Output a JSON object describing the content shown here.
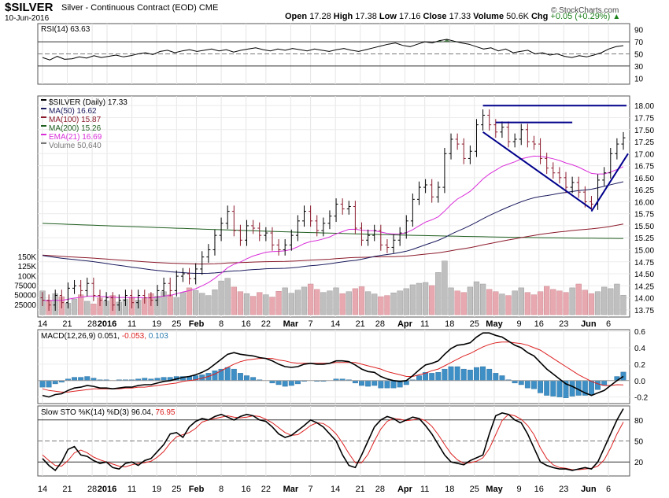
{
  "header": {
    "symbol": "$SILVER",
    "description": "Silver - Continuous Contract (EOD)",
    "exchange": "CME",
    "date": "10-Jun-2016",
    "open_label": "Open",
    "open": "17.28",
    "high_label": "High",
    "high": "17.38",
    "low_label": "Low",
    "low": "17.16",
    "close_label": "Close",
    "close": "17.33",
    "volume_label": "Volume",
    "volume": "50.6K",
    "chg_label": "Chg",
    "chg": "+0.05 (+0.29%)",
    "brand": "© StockCharts.com"
  },
  "chart_data": [
    {
      "type": "line",
      "panel": "rsi",
      "title": "RSI(14) 63.63",
      "y_ticks": [
        "90",
        "70",
        "50",
        "30",
        "10"
      ],
      "ylim": [
        0,
        100
      ],
      "reference_lines": [
        70,
        50,
        30
      ],
      "series": [
        {
          "name": "RSI(14)",
          "last": 63.63,
          "values": [
            44,
            40,
            46,
            41,
            42,
            45,
            43,
            47,
            44,
            46,
            48,
            45,
            47,
            50,
            52,
            49,
            54,
            56,
            52,
            55,
            57,
            54,
            56,
            58,
            55,
            57,
            53,
            56,
            58,
            60,
            57,
            55,
            58,
            56,
            59,
            57,
            55,
            58,
            56,
            54,
            57,
            59,
            56,
            54,
            57,
            60,
            63,
            66,
            68,
            64,
            62,
            66,
            70,
            68,
            72,
            74,
            71,
            68,
            66,
            62,
            58,
            60,
            55,
            58,
            52,
            54,
            56,
            50,
            52,
            48,
            50,
            46,
            44,
            47,
            45,
            48,
            52,
            58,
            62,
            63.63
          ]
        }
      ]
    },
    {
      "type": "candlestick",
      "panel": "price",
      "title": "$SILVER (Daily) 17.33",
      "y_ticks": [
        "18.00",
        "17.75",
        "17.50",
        "17.25",
        "17.00",
        "16.75",
        "16.50",
        "16.25",
        "16.00",
        "15.75",
        "15.50",
        "15.25",
        "15.00",
        "14.75",
        "14.50",
        "14.25",
        "14.00",
        "13.75"
      ],
      "volume_ticks": [
        "150K",
        "125K",
        "100K",
        "75000",
        "50000",
        "25000"
      ],
      "x_ticks": [
        "14",
        "21",
        "28",
        "2016",
        "11",
        "19",
        "25",
        "Feb",
        "8",
        "16",
        "22",
        "Mar",
        "7",
        "14",
        "21",
        "28",
        "Apr",
        "11",
        "18",
        "25",
        "May",
        "9",
        "16",
        "23",
        "Jun",
        "6"
      ],
      "legend": [
        {
          "label": "$SILVER (Daily) 17.33",
          "color": "#000000"
        },
        {
          "label": "MA(50) 16.62",
          "color": "#1a1a5e"
        },
        {
          "label": "MA(100) 15.87",
          "color": "#8b1a2b"
        },
        {
          "label": "MA(200) 15.26",
          "color": "#1f5e1f"
        },
        {
          "label": "EMA(21) 16.69",
          "color": "#d92fd9"
        },
        {
          "label": "Volume 50,640",
          "color": "#777777"
        }
      ],
      "ylim": [
        13.6,
        18.2
      ],
      "close": [
        13.95,
        13.85,
        14.05,
        13.9,
        14.2,
        14.25,
        14.15,
        14.3,
        14.05,
        13.95,
        14.0,
        13.85,
        13.95,
        14.05,
        13.9,
        14.05,
        14.0,
        13.95,
        14.15,
        14.3,
        14.15,
        14.45,
        14.5,
        14.4,
        14.6,
        14.85,
        15.0,
        15.3,
        15.55,
        15.8,
        15.4,
        15.2,
        15.5,
        15.45,
        15.3,
        15.35,
        15.1,
        15.0,
        15.1,
        15.3,
        15.6,
        15.8,
        15.6,
        15.4,
        15.55,
        15.7,
        15.95,
        15.85,
        15.9,
        15.45,
        15.2,
        15.3,
        15.4,
        15.1,
        15.05,
        15.2,
        15.35,
        15.6,
        16.05,
        16.3,
        16.35,
        16.1,
        16.3,
        17.0,
        17.3,
        17.2,
        16.9,
        17.05,
        17.6,
        17.8,
        17.6,
        17.45,
        17.55,
        17.25,
        17.3,
        17.5,
        17.25,
        17.2,
        16.9,
        16.7,
        16.6,
        16.5,
        16.3,
        16.4,
        16.2,
        16.0,
        15.95,
        16.45,
        16.6,
        17.0,
        17.2,
        17.33
      ],
      "volume": [
        62000,
        38000,
        55000,
        47000,
        30000,
        41000,
        52000,
        35000,
        28000,
        44000,
        36000,
        50000,
        33000,
        40000,
        46000,
        38000,
        42000,
        55000,
        48000,
        60000,
        52000,
        45000,
        58000,
        70000,
        63000,
        56000,
        50000,
        65000,
        88000,
        95000,
        72000,
        60000,
        55000,
        48000,
        58000,
        52000,
        46000,
        61000,
        70000,
        56000,
        64000,
        72000,
        80000,
        66000,
        58000,
        62000,
        70000,
        55000,
        60000,
        68000,
        73000,
        60000,
        54000,
        47000,
        50000,
        57000,
        62000,
        68000,
        78000,
        82000,
        84000,
        76000,
        110000,
        140000,
        70000,
        62000,
        58000,
        72000,
        86000,
        80000,
        66000,
        60000,
        54000,
        50000,
        62000,
        70000,
        58000,
        52000,
        60000,
        74000,
        66000,
        62000,
        58000,
        70000,
        80000,
        64000,
        55000,
        60000,
        72000,
        68000,
        80000,
        50640
      ],
      "ma50_last": 16.62,
      "ma100_last": 15.87,
      "ma200_last": 15.26,
      "ema21_last": 16.69,
      "annotations": [
        "resistance line 18.00",
        "resistance line 17.65",
        "falling trendline",
        "rising trendline"
      ]
    },
    {
      "type": "line",
      "panel": "macd",
      "title": "MACD(12,26,9)",
      "values_text": {
        "macd": "0.051",
        "signal": "-0.053",
        "histogram": "0.103"
      },
      "y_ticks": [
        "0.6",
        "0.4",
        "0.2",
        "0.0",
        "-0.2"
      ],
      "ylim": [
        -0.28,
        0.62
      ],
      "series": [
        {
          "name": "MACD",
          "values": [
            -0.18,
            -0.2,
            -0.17,
            -0.16,
            -0.12,
            -0.09,
            -0.08,
            -0.06,
            -0.07,
            -0.09,
            -0.09,
            -0.1,
            -0.09,
            -0.08,
            -0.08,
            -0.06,
            -0.05,
            -0.05,
            -0.03,
            -0.01,
            0.0,
            0.02,
            0.04,
            0.05,
            0.07,
            0.1,
            0.14,
            0.2,
            0.26,
            0.32,
            0.34,
            0.32,
            0.31,
            0.3,
            0.28,
            0.27,
            0.24,
            0.2,
            0.17,
            0.16,
            0.17,
            0.2,
            0.21,
            0.2,
            0.2,
            0.21,
            0.24,
            0.24,
            0.23,
            0.19,
            0.14,
            0.11,
            0.1,
            0.05,
            0.02,
            0.0,
            -0.01,
            0.0,
            0.06,
            0.13,
            0.19,
            0.21,
            0.24,
            0.32,
            0.39,
            0.43,
            0.44,
            0.46,
            0.53,
            0.58,
            0.58,
            0.55,
            0.53,
            0.48,
            0.43,
            0.4,
            0.34,
            0.3,
            0.22,
            0.14,
            0.08,
            0.02,
            -0.04,
            -0.07,
            -0.11,
            -0.15,
            -0.18,
            -0.15,
            -0.12,
            -0.06,
            0.0,
            0.051
          ]
        },
        {
          "name": "Signal",
          "values": [
            -0.1,
            -0.12,
            -0.13,
            -0.14,
            -0.14,
            -0.13,
            -0.12,
            -0.11,
            -0.1,
            -0.1,
            -0.1,
            -0.1,
            -0.1,
            -0.09,
            -0.09,
            -0.08,
            -0.08,
            -0.07,
            -0.06,
            -0.05,
            -0.04,
            -0.03,
            -0.01,
            0.0,
            0.01,
            0.03,
            0.05,
            0.08,
            0.12,
            0.16,
            0.2,
            0.23,
            0.25,
            0.26,
            0.27,
            0.27,
            0.27,
            0.25,
            0.24,
            0.22,
            0.21,
            0.21,
            0.21,
            0.21,
            0.21,
            0.21,
            0.22,
            0.22,
            0.22,
            0.22,
            0.2,
            0.18,
            0.16,
            0.14,
            0.11,
            0.09,
            0.07,
            0.05,
            0.05,
            0.07,
            0.09,
            0.12,
            0.14,
            0.18,
            0.22,
            0.26,
            0.3,
            0.33,
            0.37,
            0.41,
            0.44,
            0.46,
            0.47,
            0.47,
            0.46,
            0.45,
            0.43,
            0.4,
            0.37,
            0.32,
            0.27,
            0.22,
            0.17,
            0.12,
            0.07,
            0.03,
            -0.01,
            -0.04,
            -0.06,
            -0.06,
            -0.05,
            -0.053
          ]
        }
      ]
    },
    {
      "type": "line",
      "panel": "stochastic",
      "title": "Slow STO %K(14) %D(3)",
      "values_text": {
        "k": "96.04",
        "d": "76.95"
      },
      "y_ticks": [
        "80",
        "50",
        "20"
      ],
      "ylim": [
        0,
        100
      ],
      "series": [
        {
          "name": "%K",
          "values": [
            25,
            15,
            8,
            20,
            38,
            42,
            30,
            28,
            22,
            18,
            20,
            12,
            10,
            18,
            20,
            15,
            22,
            25,
            35,
            45,
            60,
            62,
            55,
            70,
            78,
            82,
            80,
            85,
            88,
            84,
            80,
            85,
            88,
            86,
            80,
            78,
            70,
            60,
            55,
            58,
            65,
            72,
            80,
            76,
            70,
            60,
            50,
            30,
            15,
            12,
            30,
            50,
            70,
            80,
            85,
            82,
            76,
            80,
            84,
            82,
            72,
            60,
            45,
            30,
            20,
            18,
            16,
            22,
            26,
            30,
            60,
            86,
            90,
            88,
            80,
            76,
            60,
            40,
            20,
            15,
            12,
            10,
            10,
            8,
            10,
            12,
            10,
            20,
            40,
            60,
            80,
            96.04
          ]
        },
        {
          "name": "%D",
          "values": [
            30,
            22,
            15,
            14,
            22,
            33,
            37,
            33,
            27,
            23,
            20,
            17,
            14,
            13,
            16,
            18,
            19,
            21,
            27,
            35,
            47,
            56,
            59,
            62,
            68,
            77,
            80,
            82,
            84,
            86,
            84,
            83,
            84,
            86,
            85,
            81,
            76,
            69,
            62,
            58,
            59,
            65,
            72,
            76,
            75,
            69,
            60,
            47,
            32,
            19,
            19,
            31,
            50,
            67,
            78,
            82,
            81,
            79,
            80,
            82,
            79,
            71,
            59,
            45,
            32,
            23,
            18,
            19,
            21,
            26,
            39,
            59,
            79,
            88,
            86,
            81,
            72,
            59,
            40,
            25,
            16,
            12,
            11,
            9,
            9,
            10,
            11,
            14,
            23,
            40,
            60,
            76.95
          ]
        }
      ]
    }
  ]
}
